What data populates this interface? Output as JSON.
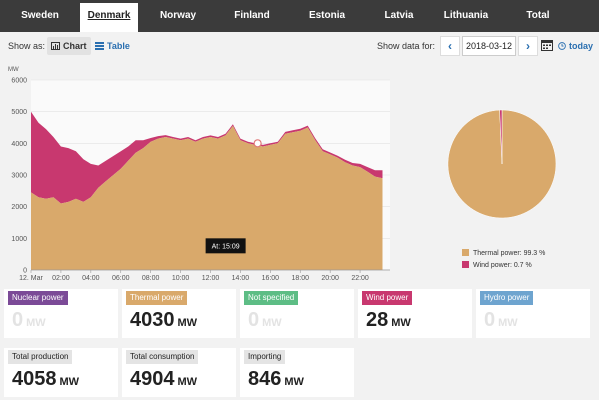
{
  "tabs": [
    {
      "label": "Sweden",
      "active": false
    },
    {
      "label": "Denmark",
      "active": true
    },
    {
      "label": "Norway",
      "active": false
    },
    {
      "label": "Finland",
      "active": false
    },
    {
      "label": "Estonia",
      "active": false
    },
    {
      "label": "Latvia",
      "active": false
    },
    {
      "label": "Lithuania",
      "active": false
    },
    {
      "label": "Total",
      "active": false
    }
  ],
  "toolbar": {
    "show_as": "Show as:",
    "chart_label": "Chart",
    "table_label": "Table",
    "show_for": "Show data for:",
    "date": "2018-03-12",
    "today_label": "today"
  },
  "chart_data": {
    "type": "area",
    "ylabel": "MW",
    "ylim": [
      0,
      6000
    ],
    "yticks": [
      "0",
      "1000",
      "2000",
      "3000",
      "4000",
      "5000",
      "6000"
    ],
    "xticks": [
      "12. Mar",
      "02:00",
      "04:00",
      "06:00",
      "08:00",
      "10:00",
      "12:00",
      "14:00",
      "16:00",
      "18:00",
      "20:00",
      "22:00"
    ],
    "x_hours": [
      0,
      0.5,
      1,
      1.5,
      2,
      2.5,
      3,
      3.5,
      4,
      4.5,
      5,
      5.5,
      6,
      6.5,
      7,
      7.5,
      8,
      8.5,
      9,
      9.5,
      10,
      10.5,
      11,
      11.5,
      12,
      12.5,
      13,
      13.5,
      14,
      14.5,
      15,
      15.5,
      16,
      16.5,
      17,
      17.5,
      18,
      18.5,
      19,
      19.5,
      20,
      20.5,
      21,
      21.5,
      22,
      22.5,
      23,
      23.5
    ],
    "series": [
      {
        "name": "Thermal power",
        "color": "#d9a96b",
        "values": [
          2450,
          2300,
          2250,
          2300,
          2100,
          2150,
          2250,
          2150,
          2300,
          2600,
          2800,
          3000,
          3200,
          3450,
          3700,
          3850,
          4050,
          4150,
          4200,
          4150,
          4100,
          4150,
          4050,
          4150,
          4200,
          4150,
          4250,
          4550,
          4100,
          4000,
          3950,
          3900,
          3950,
          4000,
          4300,
          4350,
          4400,
          4500,
          4100,
          3750,
          3650,
          3550,
          3400,
          3300,
          3250,
          3100,
          2950,
          2900
        ]
      },
      {
        "name": "Wind power",
        "color": "#c8386f",
        "values": [
          2550,
          2350,
          2200,
          1900,
          1800,
          1700,
          1500,
          1350,
          1050,
          700,
          650,
          600,
          550,
          450,
          400,
          250,
          120,
          80,
          60,
          50,
          50,
          50,
          50,
          50,
          50,
          50,
          50,
          50,
          50,
          50,
          50,
          50,
          50,
          50,
          60,
          60,
          60,
          60,
          60,
          60,
          60,
          60,
          80,
          80,
          100,
          150,
          200,
          250
        ]
      }
    ],
    "tooltip": "At: 15:09",
    "pie": [
      {
        "name": "Thermal power",
        "percent": 99.3,
        "label": "Thermal power: 99.3 %",
        "color": "#d9a96b"
      },
      {
        "name": "Wind power",
        "percent": 0.7,
        "label": "Wind power: 0.7 %",
        "color": "#c8386f"
      }
    ]
  },
  "cards": [
    {
      "label": "Nuclear power",
      "value": "0",
      "unit": "MW",
      "color": "#7b4a97",
      "zero": true
    },
    {
      "label": "Thermal power",
      "value": "4030",
      "unit": "MW",
      "color": "#d9a96b",
      "zero": false
    },
    {
      "label": "Not specified",
      "value": "0",
      "unit": "MW",
      "color": "#5dbd85",
      "zero": true
    },
    {
      "label": "Wind power",
      "value": "28",
      "unit": "MW",
      "color": "#c8386f",
      "zero": false
    },
    {
      "label": "Hydro power",
      "value": "0",
      "unit": "MW",
      "color": "#6ea4cf",
      "zero": true
    }
  ],
  "totals": [
    {
      "label": "Total production",
      "value": "4058",
      "unit": "MW"
    },
    {
      "label": "Total consumption",
      "value": "4904",
      "unit": "MW"
    },
    {
      "label": "Importing",
      "value": "846",
      "unit": "MW"
    }
  ]
}
